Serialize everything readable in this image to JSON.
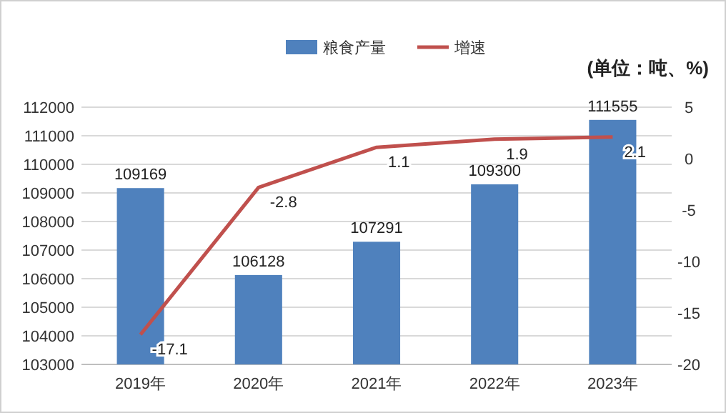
{
  "chart_data": {
    "type": "bar",
    "categories": [
      "2019年",
      "2020年",
      "2021年",
      "2022年",
      "2023年"
    ],
    "series": [
      {
        "name": "粮食产量",
        "color": "#4f81bd",
        "values": [
          109169,
          106128,
          107291,
          109300,
          111555
        ]
      },
      {
        "name": "增速",
        "type": "line",
        "axis": "y2",
        "color": "#c0504d",
        "values": [
          -17.1,
          -2.8,
          1.1,
          1.9,
          2.1
        ]
      }
    ],
    "ylim": [
      103000,
      112000
    ],
    "yticks": [
      103000,
      104000,
      105000,
      106000,
      107000,
      108000,
      109000,
      110000,
      111000,
      112000
    ],
    "y2lim": [
      -20,
      5
    ],
    "y2ticks": [
      -20,
      -15,
      -10,
      -5,
      0,
      5
    ],
    "annotations": [
      "(单位：吨、%)"
    ],
    "grid": "y",
    "legend": "top",
    "data_labels": true,
    "marker": "none",
    "line_style": "solid"
  }
}
